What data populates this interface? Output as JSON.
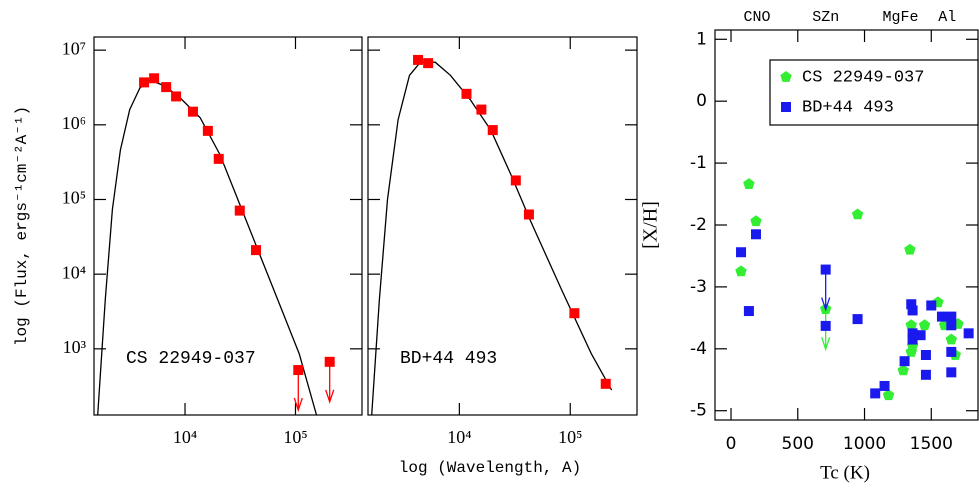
{
  "chart_data": [
    {
      "type": "line",
      "xscale": "log",
      "yscale": "log",
      "xlim": [
        1500,
        400000
      ],
      "ylim": [
        130,
        15000000
      ],
      "xticks": [
        {
          "value": 10000,
          "label": "10⁴"
        },
        {
          "value": 100000,
          "label": "10⁵"
        }
      ],
      "yticks": [
        {
          "value": 1000,
          "label": "10³"
        },
        {
          "value": 10000,
          "label": "10⁴"
        },
        {
          "value": 100000,
          "label": "10⁵"
        },
        {
          "value": 1000000,
          "label": "10⁶"
        },
        {
          "value": 10000000,
          "label": "10⁷"
        }
      ],
      "ylabel": "log (Flux, ergs⁻¹cm⁻²A⁻¹)",
      "label": "CS 22949-037",
      "series": [
        {
          "color": "#000000",
          "marker": "none",
          "x": [
            1620,
            1900,
            2200,
            2600,
            3160,
            3900,
            4800,
            6600,
            9000,
            13700,
            20700,
            31300,
            47300,
            71500,
            108000,
            155000
          ],
          "values": [
            130,
            4600,
            74000,
            460000,
            1600000,
            3100000,
            4000000,
            3300000,
            2300000,
            1250000,
            400000,
            86000,
            18500,
            4000,
            860,
            130
          ]
        },
        {
          "color": "#ff0000",
          "marker": "square",
          "x": [
            4260,
            5250,
            6750,
            8300,
            11800,
            16100,
            20200,
            31300,
            43900,
            106000,
            204000
          ],
          "values": [
            3700000,
            4200000,
            3200000,
            2400000,
            1500000,
            830000,
            350000,
            71000,
            21000,
            520,
            670
          ],
          "upper_limits": [
            false,
            false,
            false,
            false,
            false,
            false,
            false,
            false,
            false,
            true,
            true
          ]
        }
      ]
    },
    {
      "type": "line",
      "xscale": "log",
      "yscale": "log",
      "xlim": [
        1500,
        400000
      ],
      "ylim": [
        130,
        15000000
      ],
      "xticks": [
        {
          "value": 10000,
          "label": "10⁴"
        },
        {
          "value": 100000,
          "label": "10⁵"
        }
      ],
      "yticks": [
        1000,
        10000,
        100000,
        1000000,
        10000000
      ],
      "ytick_labels": false,
      "xlabel": "log (Wavelength, A)",
      "label": "BD+44 493",
      "series": [
        {
          "color": "#000000",
          "marker": "none",
          "x": [
            1620,
            1900,
            2250,
            2800,
            3550,
            4450,
            6050,
            8300,
            12600,
            19200,
            29000,
            44300,
            83000,
            155000,
            236000
          ],
          "values": [
            130,
            4600,
            100000,
            1170000,
            4600000,
            6900000,
            6900000,
            4600000,
            2150000,
            850000,
            220000,
            50000,
            6300,
            860,
            280
          ]
        },
        {
          "color": "#ff0000",
          "marker": "square",
          "x": [
            4240,
            5230,
            11600,
            15800,
            20000,
            32300,
            42400,
            109000,
            209000
          ],
          "values": [
            7400000,
            6700000,
            2600000,
            1600000,
            850000,
            180000,
            63000,
            3000,
            340
          ]
        }
      ]
    },
    {
      "type": "scatter",
      "xlim": [
        -120,
        1850
      ],
      "ylim": [
        -5.15,
        1.15
      ],
      "xticks": [
        0,
        500,
        1000,
        1500
      ],
      "yticks": [
        1,
        0,
        -1,
        -2,
        -3,
        -4,
        -5
      ],
      "xlabel": "Tc (K)",
      "ylabel": "[X/H]",
      "legend": "upper right",
      "annotations": [
        {
          "text": "CNO",
          "x": 195
        },
        {
          "text": "SZn",
          "x": 710
        },
        {
          "text": "MgFe",
          "x": 1270
        },
        {
          "text": "Al",
          "x": 1620
        }
      ],
      "series": [
        {
          "name": "CS 22949-037",
          "color": "#33ee33",
          "marker": "pentagon",
          "x": [
            134,
            187,
            75,
            948,
            1340,
            709,
            1290,
            1350,
            1350,
            1450,
            1550,
            1600,
            1650,
            1680,
            1180,
            1360,
            1700
          ],
          "values": [
            -1.34,
            -1.94,
            -2.75,
            -1.83,
            -2.4,
            -3.36,
            -4.35,
            -4.05,
            -3.62,
            -3.62,
            -3.25,
            -3.62,
            -3.85,
            -4.1,
            -4.75,
            -3.95,
            -3.6
          ],
          "upper_limits": [
            false,
            false,
            false,
            false,
            false,
            true,
            false,
            false,
            false,
            false,
            false,
            false,
            false,
            false,
            false,
            false,
            false
          ]
        },
        {
          "name": "BD+44 493",
          "color": "#1a1aee",
          "marker": "square",
          "x": [
            75,
            187,
            134,
            709,
            709,
            948,
            1080,
            1150,
            1350,
            1360,
            1360,
            1360,
            1420,
            1500,
            1580,
            1650,
            1650,
            1460,
            1300,
            1460,
            1650,
            1650,
            1780
          ],
          "values": [
            -2.44,
            -2.15,
            -3.39,
            -2.72,
            -3.63,
            -3.52,
            -4.72,
            -4.6,
            -3.28,
            -3.38,
            -3.75,
            -3.85,
            -3.78,
            -3.3,
            -3.48,
            -3.48,
            -3.62,
            -4.1,
            -4.2,
            -4.42,
            -4.05,
            -4.38,
            -3.75
          ],
          "upper_limits": [
            false,
            false,
            false,
            true,
            false,
            false,
            false,
            false,
            false,
            false,
            false,
            false,
            false,
            false,
            false,
            false,
            false,
            false,
            false,
            false,
            false,
            false,
            false
          ]
        }
      ]
    }
  ]
}
